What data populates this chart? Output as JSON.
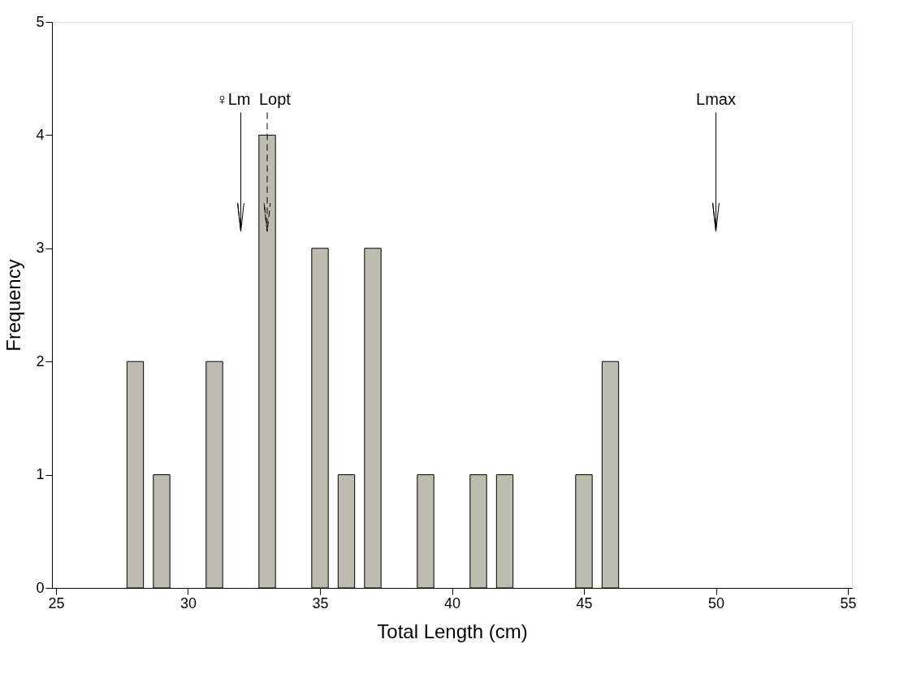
{
  "chart_data": {
    "type": "bar",
    "xlabel": "Total Length (cm)",
    "ylabel": "Frequency",
    "x": [
      28,
      29,
      31,
      33,
      35,
      36,
      37,
      39,
      41,
      42,
      45,
      46
    ],
    "values": [
      2,
      1,
      2,
      4,
      3,
      1,
      3,
      1,
      1,
      1,
      1,
      2
    ],
    "color": "#bdbcb0",
    "xlim": [
      25,
      55
    ],
    "xticks": [
      25,
      30,
      35,
      40,
      45,
      50,
      55
    ],
    "ylim": [
      0,
      5
    ],
    "yticks": [
      0,
      1,
      2,
      3,
      4,
      5
    ],
    "grid": false,
    "ref_lines": [
      {
        "axis": "x",
        "value": 32,
        "label": "♀Lm"
      },
      {
        "axis": "x",
        "value": 33,
        "label": "Lopt",
        "line_style": "dashed"
      },
      {
        "axis": "x",
        "value": 50,
        "label": "Lmax"
      }
    ]
  }
}
